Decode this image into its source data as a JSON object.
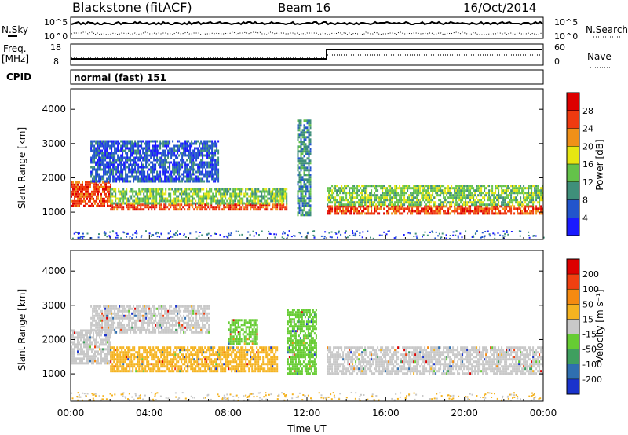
{
  "header": {
    "station": "Blackstone (fitACF)",
    "beam": "Beam 16",
    "date": "16/Oct/2014"
  },
  "strips": {
    "nsky_label": "N.Sky",
    "nsky_ticks": [
      "10^5",
      "10^0"
    ],
    "nsearch_label": "N.Search",
    "nsearch_ticks": [
      "10^5",
      "10^0"
    ],
    "freq_label": "Freq.",
    "freq_unit": "[MHz]",
    "freq_ticks": [
      "18",
      "8"
    ],
    "nave_label": "Nave",
    "nave_ticks": [
      "60",
      "0"
    ],
    "cpid_label": "CPID",
    "cpid_value": "normal (fast) 151"
  },
  "chart_data": [
    {
      "type": "heatmap",
      "name": "power",
      "ylabel": "Slant Range [km]",
      "xlabel": "",
      "ylim": [
        200,
        4600
      ],
      "xlim_hours": [
        0,
        24
      ],
      "y_ticks": [
        "1000",
        "2000",
        "3000",
        "4000"
      ],
      "colorbar": {
        "label": "Power [dB]",
        "ticks": [
          "4",
          "8",
          "12",
          "16",
          "20",
          "24",
          "28"
        ],
        "colors": [
          "#1a1aff",
          "#2255cc",
          "#3f8f7a",
          "#64c24a",
          "#e6e612",
          "#f09018",
          "#ef3a10",
          "#dd0000"
        ]
      },
      "bands": [
        {
          "hour_start": 0.0,
          "hour_end": 2.0,
          "range_start": 1150,
          "range_end": 1900,
          "level": 6
        },
        {
          "hour_start": 2.0,
          "hour_end": 11.0,
          "range_start": 1050,
          "range_end": 1250,
          "level": 6
        },
        {
          "hour_start": 2.0,
          "hour_end": 11.0,
          "range_start": 1250,
          "range_end": 1700,
          "level": 3
        },
        {
          "hour_start": 1.0,
          "hour_end": 7.5,
          "range_start": 1900,
          "range_end": 3100,
          "level": 1
        },
        {
          "hour_start": 11.5,
          "hour_end": 12.2,
          "range_start": 900,
          "range_end": 3700,
          "level": 2
        },
        {
          "hour_start": 13.0,
          "hour_end": 24.0,
          "range_start": 950,
          "range_end": 1200,
          "level": 6
        },
        {
          "hour_start": 13.0,
          "hour_end": 24.0,
          "range_start": 1200,
          "range_end": 1800,
          "level": 3
        }
      ]
    },
    {
      "type": "heatmap",
      "name": "velocity",
      "ylabel": "Slant Range [km]",
      "xlabel": "Time UT",
      "ylim": [
        200,
        4600
      ],
      "xlim_hours": [
        0,
        24
      ],
      "y_ticks": [
        "1000",
        "2000",
        "3000",
        "4000"
      ],
      "x_ticks": [
        "00:00",
        "04:00",
        "08:00",
        "12:00",
        "16:00",
        "20:00",
        "00:00"
      ],
      "colorbar": {
        "label": "Velocity [m s⁻¹]",
        "ticks": [
          "200",
          "100",
          "50",
          "15",
          "-15",
          "-50",
          "-100",
          "-200"
        ],
        "colors": [
          "#1a33cc",
          "#2f6fb0",
          "#3f9f5f",
          "#66cc33",
          "#c8c8c8",
          "#f5b320",
          "#f58a10",
          "#f04010",
          "#dd0000"
        ]
      },
      "bands": [
        {
          "hour_start": 0.0,
          "hour_end": 2.0,
          "range_start": 1300,
          "range_end": 2300,
          "level": "grey"
        },
        {
          "hour_start": 2.0,
          "hour_end": 10.5,
          "range_start": 1050,
          "range_end": 1800,
          "level": "orange"
        },
        {
          "hour_start": 1.0,
          "hour_end": 7.0,
          "range_start": 2200,
          "range_end": 3000,
          "level": "grey"
        },
        {
          "hour_start": 8.0,
          "hour_end": 9.5,
          "range_start": 1900,
          "range_end": 2600,
          "level": "green"
        },
        {
          "hour_start": 11.0,
          "hour_end": 12.5,
          "range_start": 1000,
          "range_end": 2900,
          "level": "green"
        },
        {
          "hour_start": 13.0,
          "hour_end": 24.0,
          "range_start": 1000,
          "range_end": 1800,
          "level": "grey"
        }
      ]
    }
  ]
}
